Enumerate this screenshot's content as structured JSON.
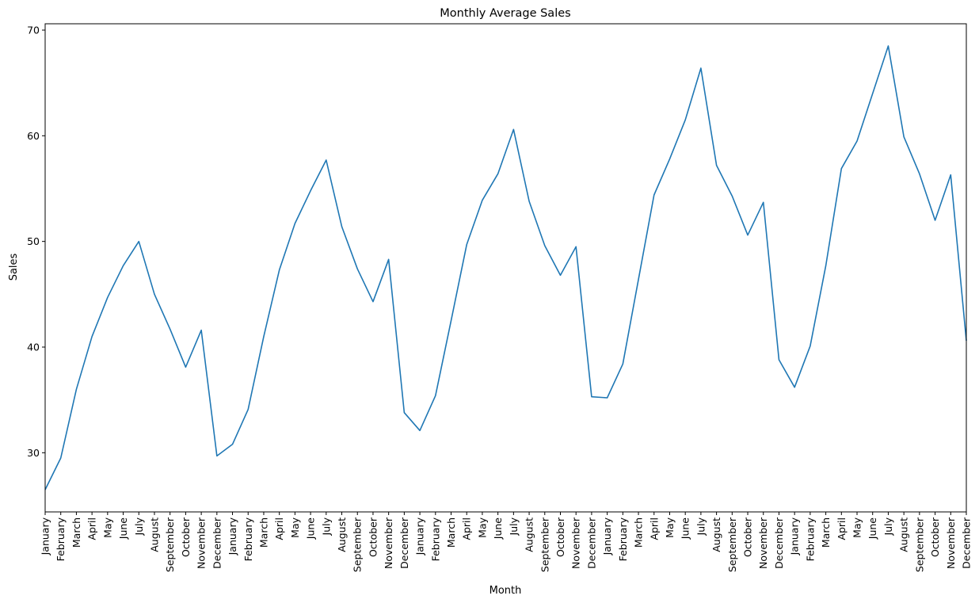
{
  "chart_data": {
    "type": "line",
    "title": "Monthly Average Sales",
    "xlabel": "Month",
    "ylabel": "Sales",
    "ylim": [
      24.4,
      70.6
    ],
    "yticks": [
      30,
      40,
      50,
      60,
      70
    ],
    "grid": false,
    "line_color": "#1f77b4",
    "categories": [
      "January",
      "February",
      "March",
      "April",
      "May",
      "June",
      "July",
      "August",
      "September",
      "October",
      "November",
      "December",
      "January",
      "February",
      "March",
      "April",
      "May",
      "June",
      "July",
      "August",
      "September",
      "October",
      "November",
      "December",
      "January",
      "February",
      "March",
      "April",
      "May",
      "June",
      "July",
      "August",
      "September",
      "October",
      "November",
      "December",
      "January",
      "February",
      "March",
      "April",
      "May",
      "June",
      "July",
      "August",
      "September",
      "October",
      "November",
      "December",
      "January",
      "February",
      "March",
      "April",
      "May",
      "June",
      "July",
      "August",
      "September",
      "October",
      "November",
      "December"
    ],
    "series": [
      {
        "values": [
          26.5,
          29.5,
          36.0,
          41.0,
          44.7,
          47.7,
          50.0,
          45.0,
          41.7,
          38.1,
          41.6,
          29.7,
          30.8,
          34.1,
          41.0,
          47.3,
          51.7,
          54.8,
          57.7,
          51.4,
          47.4,
          44.3,
          48.3,
          33.8,
          32.1,
          35.4,
          42.5,
          49.7,
          53.9,
          56.4,
          60.6,
          53.8,
          49.6,
          46.8,
          49.5,
          35.3,
          35.2,
          38.4,
          46.4,
          54.4,
          57.8,
          61.5,
          66.4,
          57.2,
          54.3,
          50.6,
          53.7,
          38.8,
          36.2,
          40.1,
          47.7,
          56.9,
          59.5,
          64.0,
          68.5,
          59.9,
          56.4,
          52.0,
          56.3,
          40.6
        ]
      }
    ]
  }
}
